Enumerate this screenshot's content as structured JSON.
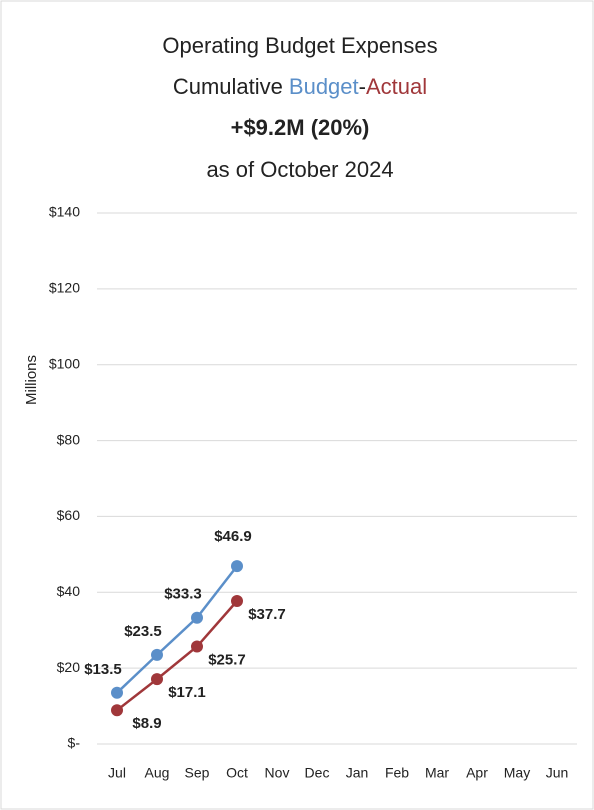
{
  "chart_data": {
    "type": "line",
    "title": "Operating Budget Expenses",
    "subtitle": "Cumulative",
    "subtitle_separator": "-",
    "headline": "+$9.2M (20%)",
    "date_note": "as of October 2024",
    "ylabel": "Millions",
    "categories": [
      "Jul",
      "Aug",
      "Sep",
      "Oct",
      "Nov",
      "Dec",
      "Jan",
      "Feb",
      "Mar",
      "Apr",
      "May",
      "Jun"
    ],
    "series": [
      {
        "name": "Budget",
        "color": "#5b8fc9",
        "values": [
          13.5,
          23.5,
          33.3,
          46.9,
          null,
          null,
          null,
          null,
          null,
          null,
          null,
          null
        ],
        "value_labels": [
          "$13.5",
          "$23.5",
          "$33.3",
          "$46.9",
          null,
          null,
          null,
          null,
          null,
          null,
          null,
          null
        ]
      },
      {
        "name": "Actual",
        "color": "#a0373a",
        "values": [
          8.9,
          17.1,
          25.7,
          37.7,
          null,
          null,
          null,
          null,
          null,
          null,
          null,
          null
        ],
        "value_labels": [
          "$8.9",
          "$17.1",
          "$25.7",
          "$37.7",
          null,
          null,
          null,
          null,
          null,
          null,
          null,
          null
        ]
      }
    ],
    "ylim": [
      0,
      140
    ],
    "yticks": [
      {
        "value": 0,
        "label": "$-"
      },
      {
        "value": 20,
        "label": "$20"
      },
      {
        "value": 40,
        "label": "$40"
      },
      {
        "value": 60,
        "label": "$60"
      },
      {
        "value": 80,
        "label": "$80"
      },
      {
        "value": 100,
        "label": "$100"
      },
      {
        "value": 120,
        "label": "$120"
      },
      {
        "value": 140,
        "label": "$140"
      }
    ],
    "grid": true
  }
}
